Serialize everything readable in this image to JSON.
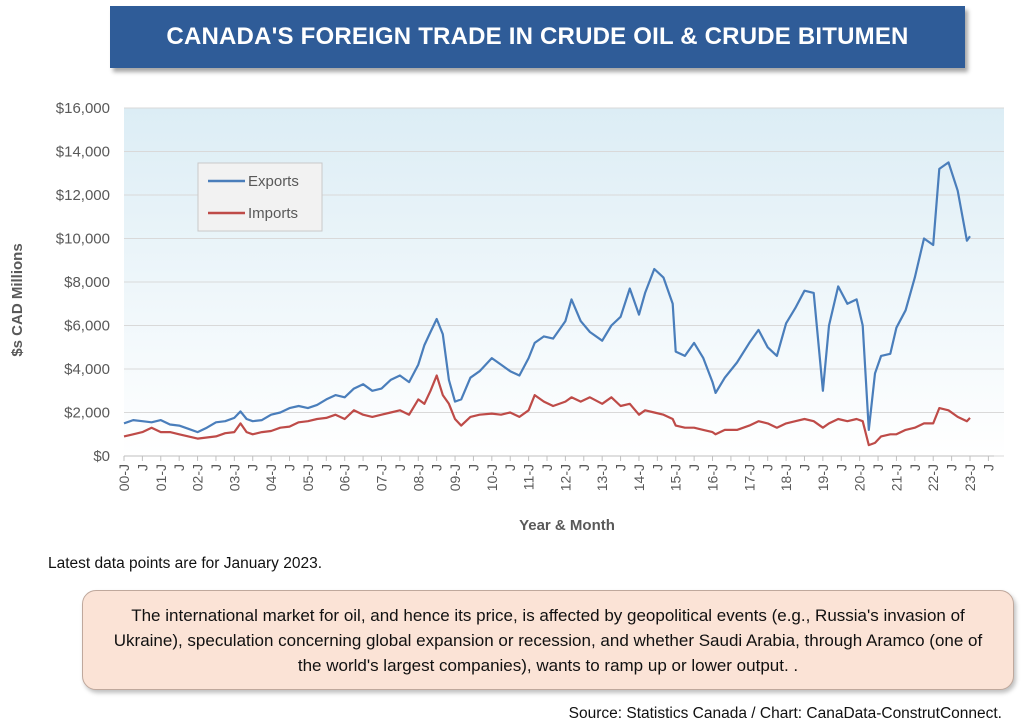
{
  "title": "CANADA'S FOREIGN TRADE IN CRUDE OIL & CRUDE BITUMEN",
  "note": "Latest data points are for January 2023.",
  "callout": "The international market for oil, and hence its price, is affected by geopolitical events (e.g., Russia's invasion of Ukraine), speculation concerning global expansion or recession, and whether Saudi Arabia, through Aramco (one of the world's largest companies), wants to ramp up or lower output. .",
  "source": "Source: Statistics Canada / Chart: CanaData-ConstrutConnect.",
  "colors": {
    "exports": "#4a7ebb",
    "imports": "#be4b48",
    "title_bg": "#2f5c98"
  },
  "chart_data": {
    "type": "line",
    "xlabel": "Year & Month",
    "ylabel": "$s CAD Millions",
    "ylim": [
      0,
      16000
    ],
    "yticks": [
      0,
      2000,
      4000,
      6000,
      8000,
      10000,
      12000,
      14000,
      16000
    ],
    "ytick_labels": [
      "$0",
      "$2,000",
      "$4,000",
      "$6,000",
      "$8,000",
      "$10,000",
      "$12,000",
      "$14,000",
      "$16,000"
    ],
    "xtick_labels": [
      "00-J",
      "01-J",
      "02-J",
      "03-J",
      "04-J",
      "05-J",
      "06-J",
      "07-J",
      "08-J",
      "09-J",
      "10-J",
      "11-J",
      "12-J",
      "13-J",
      "14-J",
      "15-J",
      "16-J",
      "17-J",
      "18-J",
      "19-J",
      "20-J",
      "21-J",
      "22-J",
      "23-J"
    ],
    "x_start": "2000-01",
    "x_end": "2023-01",
    "grid": true,
    "legend": "top-left",
    "series": [
      {
        "name": "Exports",
        "points": [
          [
            "2000-01",
            1500
          ],
          [
            "2000-04",
            1650
          ],
          [
            "2000-07",
            1600
          ],
          [
            "2000-10",
            1550
          ],
          [
            "2001-01",
            1650
          ],
          [
            "2001-04",
            1450
          ],
          [
            "2001-07",
            1400
          ],
          [
            "2001-10",
            1250
          ],
          [
            "2002-01",
            1100
          ],
          [
            "2002-04",
            1300
          ],
          [
            "2002-07",
            1550
          ],
          [
            "2002-10",
            1600
          ],
          [
            "2003-01",
            1750
          ],
          [
            "2003-03",
            2050
          ],
          [
            "2003-05",
            1700
          ],
          [
            "2003-07",
            1600
          ],
          [
            "2003-10",
            1650
          ],
          [
            "2004-01",
            1900
          ],
          [
            "2004-04",
            2000
          ],
          [
            "2004-07",
            2200
          ],
          [
            "2004-10",
            2300
          ],
          [
            "2005-01",
            2200
          ],
          [
            "2005-04",
            2350
          ],
          [
            "2005-07",
            2600
          ],
          [
            "2005-10",
            2800
          ],
          [
            "2006-01",
            2700
          ],
          [
            "2006-04",
            3100
          ],
          [
            "2006-07",
            3300
          ],
          [
            "2006-10",
            3000
          ],
          [
            "2007-01",
            3100
          ],
          [
            "2007-04",
            3500
          ],
          [
            "2007-07",
            3700
          ],
          [
            "2007-10",
            3400
          ],
          [
            "2008-01",
            4200
          ],
          [
            "2008-03",
            5100
          ],
          [
            "2008-05",
            5700
          ],
          [
            "2008-07",
            6300
          ],
          [
            "2008-09",
            5600
          ],
          [
            "2008-11",
            3500
          ],
          [
            "2009-01",
            2500
          ],
          [
            "2009-03",
            2600
          ],
          [
            "2009-06",
            3600
          ],
          [
            "2009-09",
            3900
          ],
          [
            "2010-01",
            4500
          ],
          [
            "2010-04",
            4200
          ],
          [
            "2010-07",
            3900
          ],
          [
            "2010-10",
            3700
          ],
          [
            "2011-01",
            4500
          ],
          [
            "2011-03",
            5200
          ],
          [
            "2011-06",
            5500
          ],
          [
            "2011-09",
            5400
          ],
          [
            "2012-01",
            6200
          ],
          [
            "2012-03",
            7200
          ],
          [
            "2012-06",
            6200
          ],
          [
            "2012-09",
            5700
          ],
          [
            "2013-01",
            5300
          ],
          [
            "2013-04",
            6000
          ],
          [
            "2013-07",
            6400
          ],
          [
            "2013-10",
            7700
          ],
          [
            "2014-01",
            6500
          ],
          [
            "2014-03",
            7500
          ],
          [
            "2014-06",
            8600
          ],
          [
            "2014-09",
            8200
          ],
          [
            "2014-12",
            7000
          ],
          [
            "2015-01",
            4800
          ],
          [
            "2015-04",
            4600
          ],
          [
            "2015-07",
            5200
          ],
          [
            "2015-10",
            4500
          ],
          [
            "2016-01",
            3400
          ],
          [
            "2016-02",
            2900
          ],
          [
            "2016-05",
            3600
          ],
          [
            "2016-09",
            4300
          ],
          [
            "2017-01",
            5200
          ],
          [
            "2017-04",
            5800
          ],
          [
            "2017-07",
            5000
          ],
          [
            "2017-10",
            4600
          ],
          [
            "2018-01",
            6100
          ],
          [
            "2018-04",
            6800
          ],
          [
            "2018-07",
            7600
          ],
          [
            "2018-10",
            7500
          ],
          [
            "2019-01",
            3000
          ],
          [
            "2019-03",
            6000
          ],
          [
            "2019-06",
            7800
          ],
          [
            "2019-09",
            7000
          ],
          [
            "2019-12",
            7200
          ],
          [
            "2020-02",
            6000
          ],
          [
            "2020-04",
            1200
          ],
          [
            "2020-06",
            3800
          ],
          [
            "2020-08",
            4600
          ],
          [
            "2020-11",
            4700
          ],
          [
            "2021-01",
            5900
          ],
          [
            "2021-04",
            6700
          ],
          [
            "2021-07",
            8200
          ],
          [
            "2021-10",
            10000
          ],
          [
            "2022-01",
            9700
          ],
          [
            "2022-03",
            13200
          ],
          [
            "2022-06",
            13500
          ],
          [
            "2022-09",
            12200
          ],
          [
            "2022-12",
            9900
          ],
          [
            "2023-01",
            10100
          ]
        ]
      },
      {
        "name": "Imports",
        "points": [
          [
            "2000-01",
            900
          ],
          [
            "2000-04",
            1000
          ],
          [
            "2000-07",
            1100
          ],
          [
            "2000-10",
            1300
          ],
          [
            "2001-01",
            1100
          ],
          [
            "2001-04",
            1100
          ],
          [
            "2001-07",
            1000
          ],
          [
            "2001-10",
            900
          ],
          [
            "2002-01",
            800
          ],
          [
            "2002-04",
            850
          ],
          [
            "2002-07",
            900
          ],
          [
            "2002-10",
            1050
          ],
          [
            "2003-01",
            1100
          ],
          [
            "2003-03",
            1500
          ],
          [
            "2003-05",
            1100
          ],
          [
            "2003-07",
            1000
          ],
          [
            "2003-10",
            1100
          ],
          [
            "2004-01",
            1150
          ],
          [
            "2004-04",
            1300
          ],
          [
            "2004-07",
            1350
          ],
          [
            "2004-10",
            1550
          ],
          [
            "2005-01",
            1600
          ],
          [
            "2005-04",
            1700
          ],
          [
            "2005-07",
            1750
          ],
          [
            "2005-10",
            1900
          ],
          [
            "2006-01",
            1700
          ],
          [
            "2006-04",
            2100
          ],
          [
            "2006-07",
            1900
          ],
          [
            "2006-10",
            1800
          ],
          [
            "2007-01",
            1900
          ],
          [
            "2007-04",
            2000
          ],
          [
            "2007-07",
            2100
          ],
          [
            "2007-10",
            1900
          ],
          [
            "2008-01",
            2600
          ],
          [
            "2008-03",
            2400
          ],
          [
            "2008-05",
            3000
          ],
          [
            "2008-07",
            3700
          ],
          [
            "2008-09",
            2800
          ],
          [
            "2008-11",
            2400
          ],
          [
            "2009-01",
            1700
          ],
          [
            "2009-03",
            1400
          ],
          [
            "2009-06",
            1800
          ],
          [
            "2009-09",
            1900
          ],
          [
            "2010-01",
            1950
          ],
          [
            "2010-04",
            1900
          ],
          [
            "2010-07",
            2000
          ],
          [
            "2010-10",
            1800
          ],
          [
            "2011-01",
            2100
          ],
          [
            "2011-03",
            2800
          ],
          [
            "2011-06",
            2500
          ],
          [
            "2011-09",
            2300
          ],
          [
            "2012-01",
            2500
          ],
          [
            "2012-03",
            2700
          ],
          [
            "2012-06",
            2500
          ],
          [
            "2012-09",
            2700
          ],
          [
            "2013-01",
            2400
          ],
          [
            "2013-04",
            2700
          ],
          [
            "2013-07",
            2300
          ],
          [
            "2013-10",
            2400
          ],
          [
            "2014-01",
            1900
          ],
          [
            "2014-03",
            2100
          ],
          [
            "2014-06",
            2000
          ],
          [
            "2014-09",
            1900
          ],
          [
            "2014-12",
            1700
          ],
          [
            "2015-01",
            1400
          ],
          [
            "2015-04",
            1300
          ],
          [
            "2015-07",
            1300
          ],
          [
            "2015-10",
            1200
          ],
          [
            "2016-01",
            1100
          ],
          [
            "2016-02",
            1000
          ],
          [
            "2016-05",
            1200
          ],
          [
            "2016-09",
            1200
          ],
          [
            "2017-01",
            1400
          ],
          [
            "2017-04",
            1600
          ],
          [
            "2017-07",
            1500
          ],
          [
            "2017-10",
            1300
          ],
          [
            "2018-01",
            1500
          ],
          [
            "2018-04",
            1600
          ],
          [
            "2018-07",
            1700
          ],
          [
            "2018-10",
            1600
          ],
          [
            "2019-01",
            1300
          ],
          [
            "2019-03",
            1500
          ],
          [
            "2019-06",
            1700
          ],
          [
            "2019-09",
            1600
          ],
          [
            "2019-12",
            1700
          ],
          [
            "2020-02",
            1600
          ],
          [
            "2020-04",
            500
          ],
          [
            "2020-06",
            600
          ],
          [
            "2020-08",
            900
          ],
          [
            "2020-11",
            1000
          ],
          [
            "2021-01",
            1000
          ],
          [
            "2021-04",
            1200
          ],
          [
            "2021-07",
            1300
          ],
          [
            "2021-10",
            1500
          ],
          [
            "2022-01",
            1500
          ],
          [
            "2022-03",
            2200
          ],
          [
            "2022-06",
            2100
          ],
          [
            "2022-09",
            1800
          ],
          [
            "2022-12",
            1600
          ],
          [
            "2023-01",
            1750
          ]
        ]
      }
    ]
  }
}
